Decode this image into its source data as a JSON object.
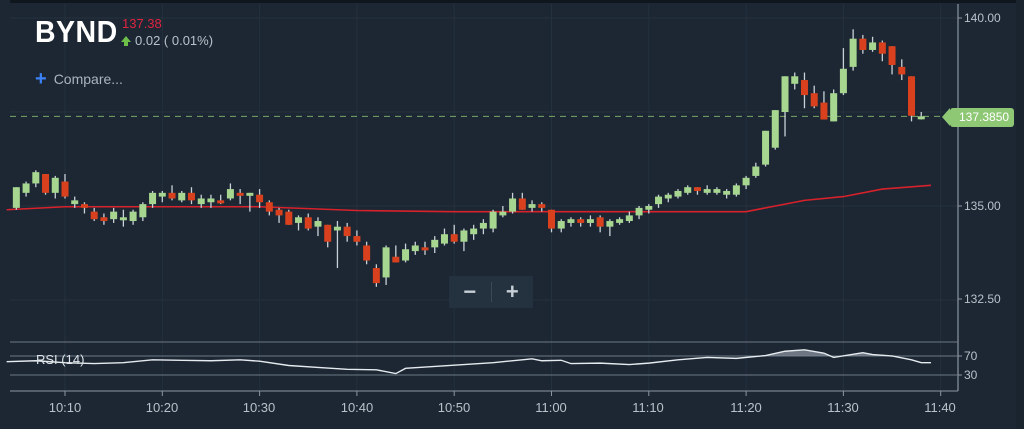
{
  "header": {
    "ticker": "BYND",
    "price": "137.38",
    "change": "0.02 ( 0.01%)",
    "change_direction_icon": "up-arrow-icon",
    "compare_label": "Compare...",
    "compare_icon": "plus-icon"
  },
  "zoom_controls": {
    "zoom_out_label": "−",
    "zoom_in_label": "+"
  },
  "price_axis": {
    "labels": [
      "140.00",
      "135.00",
      "132.50"
    ],
    "last_price_tag": "137.3850"
  },
  "rsi_pane": {
    "label": "RSI (14)",
    "levels": [
      "70",
      "30"
    ]
  },
  "time_axis": {
    "labels": [
      "10:10",
      "10:20",
      "10:30",
      "10:40",
      "10:50",
      "11:00",
      "11:10",
      "11:20",
      "11:30",
      "11:40"
    ]
  },
  "colors": {
    "background": "#1c2733",
    "up_candle": "#a6d68f",
    "down_candle": "#d9411e",
    "moving_average": "#d7212b",
    "last_price_line": "#8fc875",
    "rsi_line": "#e6ebef",
    "price_text": "#e0233f",
    "change_up": "#6cc04a",
    "compare_plus": "#3b82f6"
  },
  "chart_data": {
    "type": "candlestick",
    "title": "BYND",
    "xlabel": "",
    "ylabel": "",
    "interval": "1 min",
    "ylim": [
      131.6,
      140.3
    ],
    "y_ticks": [
      140.0,
      135.0,
      132.5
    ],
    "x_ticks": [
      "10:10",
      "10:20",
      "10:30",
      "10:40",
      "10:50",
      "11:00",
      "11:10",
      "11:20",
      "11:30",
      "11:40"
    ],
    "last_price": 137.385,
    "grid": true,
    "overlays": [
      "moving average (red)",
      "last price dashed line"
    ],
    "candles": [
      {
        "t": "10:05",
        "o": 134.95,
        "h": 135.4,
        "l": 134.9,
        "c": 135.5
      },
      {
        "t": "10:06",
        "o": 135.35,
        "h": 135.65,
        "l": 135.25,
        "c": 135.6
      },
      {
        "t": "10:07",
        "o": 135.6,
        "h": 135.95,
        "l": 135.5,
        "c": 135.9
      },
      {
        "t": "10:08",
        "o": 135.85,
        "h": 135.85,
        "l": 135.3,
        "c": 135.35
      },
      {
        "t": "10:09",
        "o": 135.35,
        "h": 135.8,
        "l": 135.2,
        "c": 135.75
      },
      {
        "t": "10:10",
        "o": 135.65,
        "h": 135.85,
        "l": 135.2,
        "c": 135.25
      },
      {
        "t": "10:11",
        "o": 135.05,
        "h": 135.25,
        "l": 134.95,
        "c": 135.15
      },
      {
        "t": "10:12",
        "o": 135.05,
        "h": 135.1,
        "l": 134.8,
        "c": 134.95
      },
      {
        "t": "10:13",
        "o": 134.85,
        "h": 134.95,
        "l": 134.6,
        "c": 134.65
      },
      {
        "t": "10:14",
        "o": 134.7,
        "h": 134.8,
        "l": 134.5,
        "c": 134.6
      },
      {
        "t": "10:15",
        "o": 134.65,
        "h": 134.95,
        "l": 134.55,
        "c": 134.85
      },
      {
        "t": "10:16",
        "o": 134.65,
        "h": 134.9,
        "l": 134.45,
        "c": 134.7
      },
      {
        "t": "10:17",
        "o": 134.6,
        "h": 134.9,
        "l": 134.5,
        "c": 134.85
      },
      {
        "t": "10:18",
        "o": 134.7,
        "h": 135.1,
        "l": 134.6,
        "c": 135.05
      },
      {
        "t": "10:19",
        "o": 135.05,
        "h": 135.4,
        "l": 134.95,
        "c": 135.35
      },
      {
        "t": "10:20",
        "o": 135.25,
        "h": 135.4,
        "l": 135.1,
        "c": 135.35
      },
      {
        "t": "10:21",
        "o": 135.35,
        "h": 135.55,
        "l": 135.15,
        "c": 135.2
      },
      {
        "t": "10:22",
        "o": 135.15,
        "h": 135.4,
        "l": 135.1,
        "c": 135.35
      },
      {
        "t": "10:23",
        "o": 135.35,
        "h": 135.5,
        "l": 135.05,
        "c": 135.15
      },
      {
        "t": "10:24",
        "o": 135.05,
        "h": 135.3,
        "l": 134.95,
        "c": 135.2
      },
      {
        "t": "10:25",
        "o": 135.1,
        "h": 135.3,
        "l": 134.95,
        "c": 135.2
      },
      {
        "t": "10:26",
        "o": 135.15,
        "h": 135.3,
        "l": 135.05,
        "c": 135.1
      },
      {
        "t": "10:27",
        "o": 135.2,
        "h": 135.6,
        "l": 135.15,
        "c": 135.45
      },
      {
        "t": "10:28",
        "o": 135.35,
        "h": 135.45,
        "l": 135.05,
        "c": 135.3
      },
      {
        "t": "10:29",
        "o": 135.3,
        "h": 135.35,
        "l": 134.85,
        "c": 135.35
      },
      {
        "t": "10:30",
        "o": 135.3,
        "h": 135.45,
        "l": 134.95,
        "c": 135.1
      },
      {
        "t": "10:31",
        "o": 135.1,
        "h": 135.15,
        "l": 134.75,
        "c": 134.85
      },
      {
        "t": "10:32",
        "o": 134.9,
        "h": 134.95,
        "l": 134.55,
        "c": 134.75
      },
      {
        "t": "10:33",
        "o": 134.85,
        "h": 134.9,
        "l": 134.55,
        "c": 134.5
      },
      {
        "t": "10:34",
        "o": 134.55,
        "h": 134.75,
        "l": 134.35,
        "c": 134.7
      },
      {
        "t": "10:35",
        "o": 134.7,
        "h": 134.8,
        "l": 134.35,
        "c": 134.4
      },
      {
        "t": "10:36",
        "o": 134.45,
        "h": 134.7,
        "l": 134.2,
        "c": 134.6
      },
      {
        "t": "10:37",
        "o": 134.5,
        "h": 134.5,
        "l": 133.9,
        "c": 134.05
      },
      {
        "t": "10:38",
        "o": 134.35,
        "h": 134.6,
        "l": 133.35,
        "c": 134.45
      },
      {
        "t": "10:39",
        "o": 134.45,
        "h": 134.55,
        "l": 134.05,
        "c": 134.2
      },
      {
        "t": "10:40",
        "o": 134.2,
        "h": 134.35,
        "l": 133.95,
        "c": 134.05
      },
      {
        "t": "10:41",
        "o": 133.95,
        "h": 134.05,
        "l": 133.45,
        "c": 133.55
      },
      {
        "t": "10:42",
        "o": 133.35,
        "h": 133.45,
        "l": 132.85,
        "c": 132.95
      },
      {
        "t": "10:43",
        "o": 133.1,
        "h": 133.95,
        "l": 132.9,
        "c": 133.9
      },
      {
        "t": "10:44",
        "o": 133.65,
        "h": 133.95,
        "l": 133.5,
        "c": 133.5
      },
      {
        "t": "10:45",
        "o": 133.55,
        "h": 134.0,
        "l": 133.5,
        "c": 133.85
      },
      {
        "t": "10:46",
        "o": 133.8,
        "h": 134.05,
        "l": 133.7,
        "c": 133.95
      },
      {
        "t": "10:47",
        "o": 133.9,
        "h": 134.05,
        "l": 133.7,
        "c": 133.85
      },
      {
        "t": "10:48",
        "o": 133.9,
        "h": 134.2,
        "l": 133.75,
        "c": 134.1
      },
      {
        "t": "10:49",
        "o": 134.0,
        "h": 134.4,
        "l": 133.95,
        "c": 134.25
      },
      {
        "t": "10:50",
        "o": 134.25,
        "h": 134.5,
        "l": 134.0,
        "c": 134.05
      },
      {
        "t": "10:51",
        "o": 134.05,
        "h": 134.4,
        "l": 133.8,
        "c": 134.35
      },
      {
        "t": "10:52",
        "o": 134.25,
        "h": 134.5,
        "l": 134.1,
        "c": 134.4
      },
      {
        "t": "10:53",
        "o": 134.4,
        "h": 134.65,
        "l": 134.25,
        "c": 134.55
      },
      {
        "t": "10:54",
        "o": 134.4,
        "h": 134.9,
        "l": 134.3,
        "c": 134.85
      },
      {
        "t": "10:55",
        "o": 134.75,
        "h": 135.0,
        "l": 134.7,
        "c": 134.85
      },
      {
        "t": "10:56",
        "o": 134.85,
        "h": 135.35,
        "l": 134.8,
        "c": 135.2
      },
      {
        "t": "10:57",
        "o": 135.2,
        "h": 135.35,
        "l": 134.95,
        "c": 134.9
      },
      {
        "t": "10:58",
        "o": 134.95,
        "h": 135.15,
        "l": 134.85,
        "c": 135.05
      },
      {
        "t": "10:59",
        "o": 135.05,
        "h": 135.1,
        "l": 134.85,
        "c": 134.95
      },
      {
        "t": "11:00",
        "o": 134.9,
        "h": 134.9,
        "l": 134.3,
        "c": 134.4
      },
      {
        "t": "11:01",
        "o": 134.4,
        "h": 134.65,
        "l": 134.3,
        "c": 134.6
      },
      {
        "t": "11:02",
        "o": 134.55,
        "h": 134.7,
        "l": 134.45,
        "c": 134.65
      },
      {
        "t": "11:03",
        "o": 134.65,
        "h": 134.7,
        "l": 134.45,
        "c": 134.55
      },
      {
        "t": "11:04",
        "o": 134.55,
        "h": 134.75,
        "l": 134.45,
        "c": 134.65
      },
      {
        "t": "11:05",
        "o": 134.7,
        "h": 134.75,
        "l": 134.3,
        "c": 134.45
      },
      {
        "t": "11:06",
        "o": 134.45,
        "h": 134.65,
        "l": 134.2,
        "c": 134.6
      },
      {
        "t": "11:07",
        "o": 134.55,
        "h": 134.7,
        "l": 134.5,
        "c": 134.65
      },
      {
        "t": "11:08",
        "o": 134.6,
        "h": 134.85,
        "l": 134.55,
        "c": 134.75
      },
      {
        "t": "11:09",
        "o": 134.75,
        "h": 135.0,
        "l": 134.65,
        "c": 134.95
      },
      {
        "t": "11:10",
        "o": 134.9,
        "h": 135.05,
        "l": 134.8,
        "c": 135.0
      },
      {
        "t": "11:11",
        "o": 135.05,
        "h": 135.3,
        "l": 134.95,
        "c": 135.25
      },
      {
        "t": "11:12",
        "o": 135.2,
        "h": 135.35,
        "l": 135.1,
        "c": 135.3
      },
      {
        "t": "11:13",
        "o": 135.25,
        "h": 135.45,
        "l": 135.2,
        "c": 135.4
      },
      {
        "t": "11:14",
        "o": 135.35,
        "h": 135.55,
        "l": 135.3,
        "c": 135.5
      },
      {
        "t": "11:15",
        "o": 135.5,
        "h": 135.5,
        "l": 135.3,
        "c": 135.4
      },
      {
        "t": "11:16",
        "o": 135.35,
        "h": 135.55,
        "l": 135.3,
        "c": 135.45
      },
      {
        "t": "11:17",
        "o": 135.35,
        "h": 135.5,
        "l": 135.3,
        "c": 135.45
      },
      {
        "t": "11:18",
        "o": 135.3,
        "h": 135.45,
        "l": 135.2,
        "c": 135.4
      },
      {
        "t": "11:19",
        "o": 135.3,
        "h": 135.6,
        "l": 135.25,
        "c": 135.55
      },
      {
        "t": "11:20",
        "o": 135.55,
        "h": 135.8,
        "l": 135.45,
        "c": 135.75
      },
      {
        "t": "11:21",
        "o": 135.8,
        "h": 136.15,
        "l": 135.75,
        "c": 136.05
      },
      {
        "t": "11:22",
        "o": 136.1,
        "h": 137.0,
        "l": 136.05,
        "c": 137.0
      },
      {
        "t": "11:23",
        "o": 136.55,
        "h": 137.5,
        "l": 136.5,
        "c": 137.55
      },
      {
        "t": "11:24",
        "o": 137.5,
        "h": 138.35,
        "l": 136.85,
        "c": 138.45
      },
      {
        "t": "11:25",
        "o": 138.25,
        "h": 138.55,
        "l": 138.1,
        "c": 138.45
      },
      {
        "t": "11:26",
        "o": 138.35,
        "h": 138.55,
        "l": 137.6,
        "c": 137.95
      },
      {
        "t": "11:27",
        "o": 138.0,
        "h": 138.2,
        "l": 137.6,
        "c": 137.65
      },
      {
        "t": "11:28",
        "o": 137.75,
        "h": 138.05,
        "l": 137.3,
        "c": 137.3
      },
      {
        "t": "11:29",
        "o": 137.25,
        "h": 138.1,
        "l": 137.25,
        "c": 138.0
      },
      {
        "t": "11:30",
        "o": 138.0,
        "h": 139.2,
        "l": 137.95,
        "c": 138.65
      },
      {
        "t": "11:31",
        "o": 138.7,
        "h": 139.7,
        "l": 138.6,
        "c": 139.45
      },
      {
        "t": "11:32",
        "o": 139.45,
        "h": 139.55,
        "l": 139.05,
        "c": 139.15
      },
      {
        "t": "11:33",
        "o": 139.15,
        "h": 139.5,
        "l": 139.1,
        "c": 139.35
      },
      {
        "t": "11:34",
        "o": 139.35,
        "h": 139.4,
        "l": 138.85,
        "c": 139.05
      },
      {
        "t": "11:35",
        "o": 139.25,
        "h": 139.25,
        "l": 138.5,
        "c": 138.75
      },
      {
        "t": "11:36",
        "o": 138.7,
        "h": 138.9,
        "l": 138.35,
        "c": 138.5
      },
      {
        "t": "11:37",
        "o": 138.45,
        "h": 138.45,
        "l": 137.25,
        "c": 137.4
      },
      {
        "t": "11:38",
        "o": 137.35,
        "h": 137.5,
        "l": 137.3,
        "c": 137.385
      }
    ],
    "moving_average": {
      "name": "MA",
      "color": "#d7212b",
      "points": [
        [
          "10:04",
          134.9
        ],
        [
          "10:10",
          134.98
        ],
        [
          "10:20",
          134.98
        ],
        [
          "10:30",
          134.98
        ],
        [
          "10:40",
          134.88
        ],
        [
          "10:50",
          134.85
        ],
        [
          "11:00",
          134.85
        ],
        [
          "11:10",
          134.85
        ],
        [
          "11:20",
          134.85
        ],
        [
          "11:23",
          135.0
        ],
        [
          "11:26",
          135.15
        ],
        [
          "11:30",
          135.25
        ],
        [
          "11:34",
          135.45
        ],
        [
          "11:39",
          135.55
        ]
      ]
    },
    "rsi": {
      "name": "RSI (14)",
      "levels": [
        70,
        30
      ],
      "points": [
        [
          "10:04",
          58
        ],
        [
          "10:07",
          60
        ],
        [
          "10:10",
          56
        ],
        [
          "10:13",
          54
        ],
        [
          "10:16",
          56
        ],
        [
          "10:19",
          62
        ],
        [
          "10:22",
          61
        ],
        [
          "10:25",
          60
        ],
        [
          "10:28",
          62
        ],
        [
          "10:30",
          59
        ],
        [
          "10:33",
          50
        ],
        [
          "10:36",
          46
        ],
        [
          "10:39",
          42
        ],
        [
          "10:42",
          41
        ],
        [
          "10:44",
          33
        ],
        [
          "10:45",
          44
        ],
        [
          "10:48",
          48
        ],
        [
          "10:51",
          52
        ],
        [
          "10:54",
          56
        ],
        [
          "10:57",
          62
        ],
        [
          "10:58",
          64
        ],
        [
          "10:59",
          60
        ],
        [
          "11:01",
          61
        ],
        [
          "11:02",
          54
        ],
        [
          "11:05",
          55
        ],
        [
          "11:08",
          52
        ],
        [
          "11:10",
          55
        ],
        [
          "11:13",
          62
        ],
        [
          "11:16",
          67
        ],
        [
          "11:19",
          65
        ],
        [
          "11:22",
          71
        ],
        [
          "11:24",
          80
        ],
        [
          "11:26",
          83
        ],
        [
          "11:28",
          76
        ],
        [
          "11:29",
          67
        ],
        [
          "11:32",
          77
        ],
        [
          "11:33",
          73
        ],
        [
          "11:35",
          70
        ],
        [
          "11:37",
          62
        ],
        [
          "11:38",
          56
        ],
        [
          "11:39",
          56
        ]
      ]
    }
  }
}
